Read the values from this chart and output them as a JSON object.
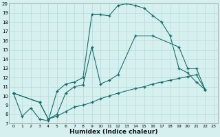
{
  "xlabel": "Humidex (Indice chaleur)",
  "bg_color": "#d6f0f0",
  "grid_color": "#b8d8d8",
  "line_color": "#1a6b6b",
  "xlim": [
    -0.5,
    23.5
  ],
  "ylim": [
    7,
    20
  ],
  "xticks": [
    0,
    1,
    2,
    3,
    4,
    5,
    6,
    7,
    8,
    9,
    10,
    11,
    12,
    13,
    14,
    15,
    16,
    17,
    18,
    19,
    20,
    21,
    22,
    23
  ],
  "yticks": [
    7,
    8,
    9,
    10,
    11,
    12,
    13,
    14,
    15,
    16,
    17,
    18,
    19,
    20
  ],
  "line1_x": [
    0,
    1,
    2,
    3,
    4,
    5,
    6,
    7,
    8,
    9,
    10,
    11,
    12,
    13,
    14,
    15,
    16,
    17,
    18,
    19,
    20,
    21,
    22
  ],
  "line1_y": [
    10.3,
    7.8,
    8.7,
    7.5,
    7.3,
    10.5,
    11.3,
    11.5,
    12.0,
    18.8,
    18.8,
    18.7,
    19.8,
    20.0,
    19.8,
    19.5,
    18.7,
    18.0,
    16.5,
    13.0,
    12.5,
    11.5,
    10.7
  ],
  "line2_x": [
    0,
    3,
    4,
    5,
    6,
    7,
    8,
    9,
    10,
    11,
    12,
    14,
    16,
    19,
    20,
    21,
    22
  ],
  "line2_y": [
    10.3,
    9.3,
    7.5,
    8.0,
    10.3,
    11.0,
    11.2,
    15.3,
    11.3,
    11.7,
    12.3,
    16.5,
    16.5,
    15.3,
    13.0,
    13.0,
    10.7
  ],
  "line3_x": [
    0,
    3,
    4,
    5,
    6,
    7,
    8,
    9,
    10,
    11,
    12,
    14,
    15,
    16,
    17,
    18,
    19,
    20,
    21,
    22
  ],
  "line3_y": [
    10.3,
    9.3,
    7.5,
    7.8,
    8.3,
    8.8,
    9.0,
    9.3,
    9.7,
    10.0,
    10.3,
    10.8,
    11.0,
    11.3,
    11.5,
    11.7,
    11.9,
    12.1,
    12.3,
    10.7
  ]
}
